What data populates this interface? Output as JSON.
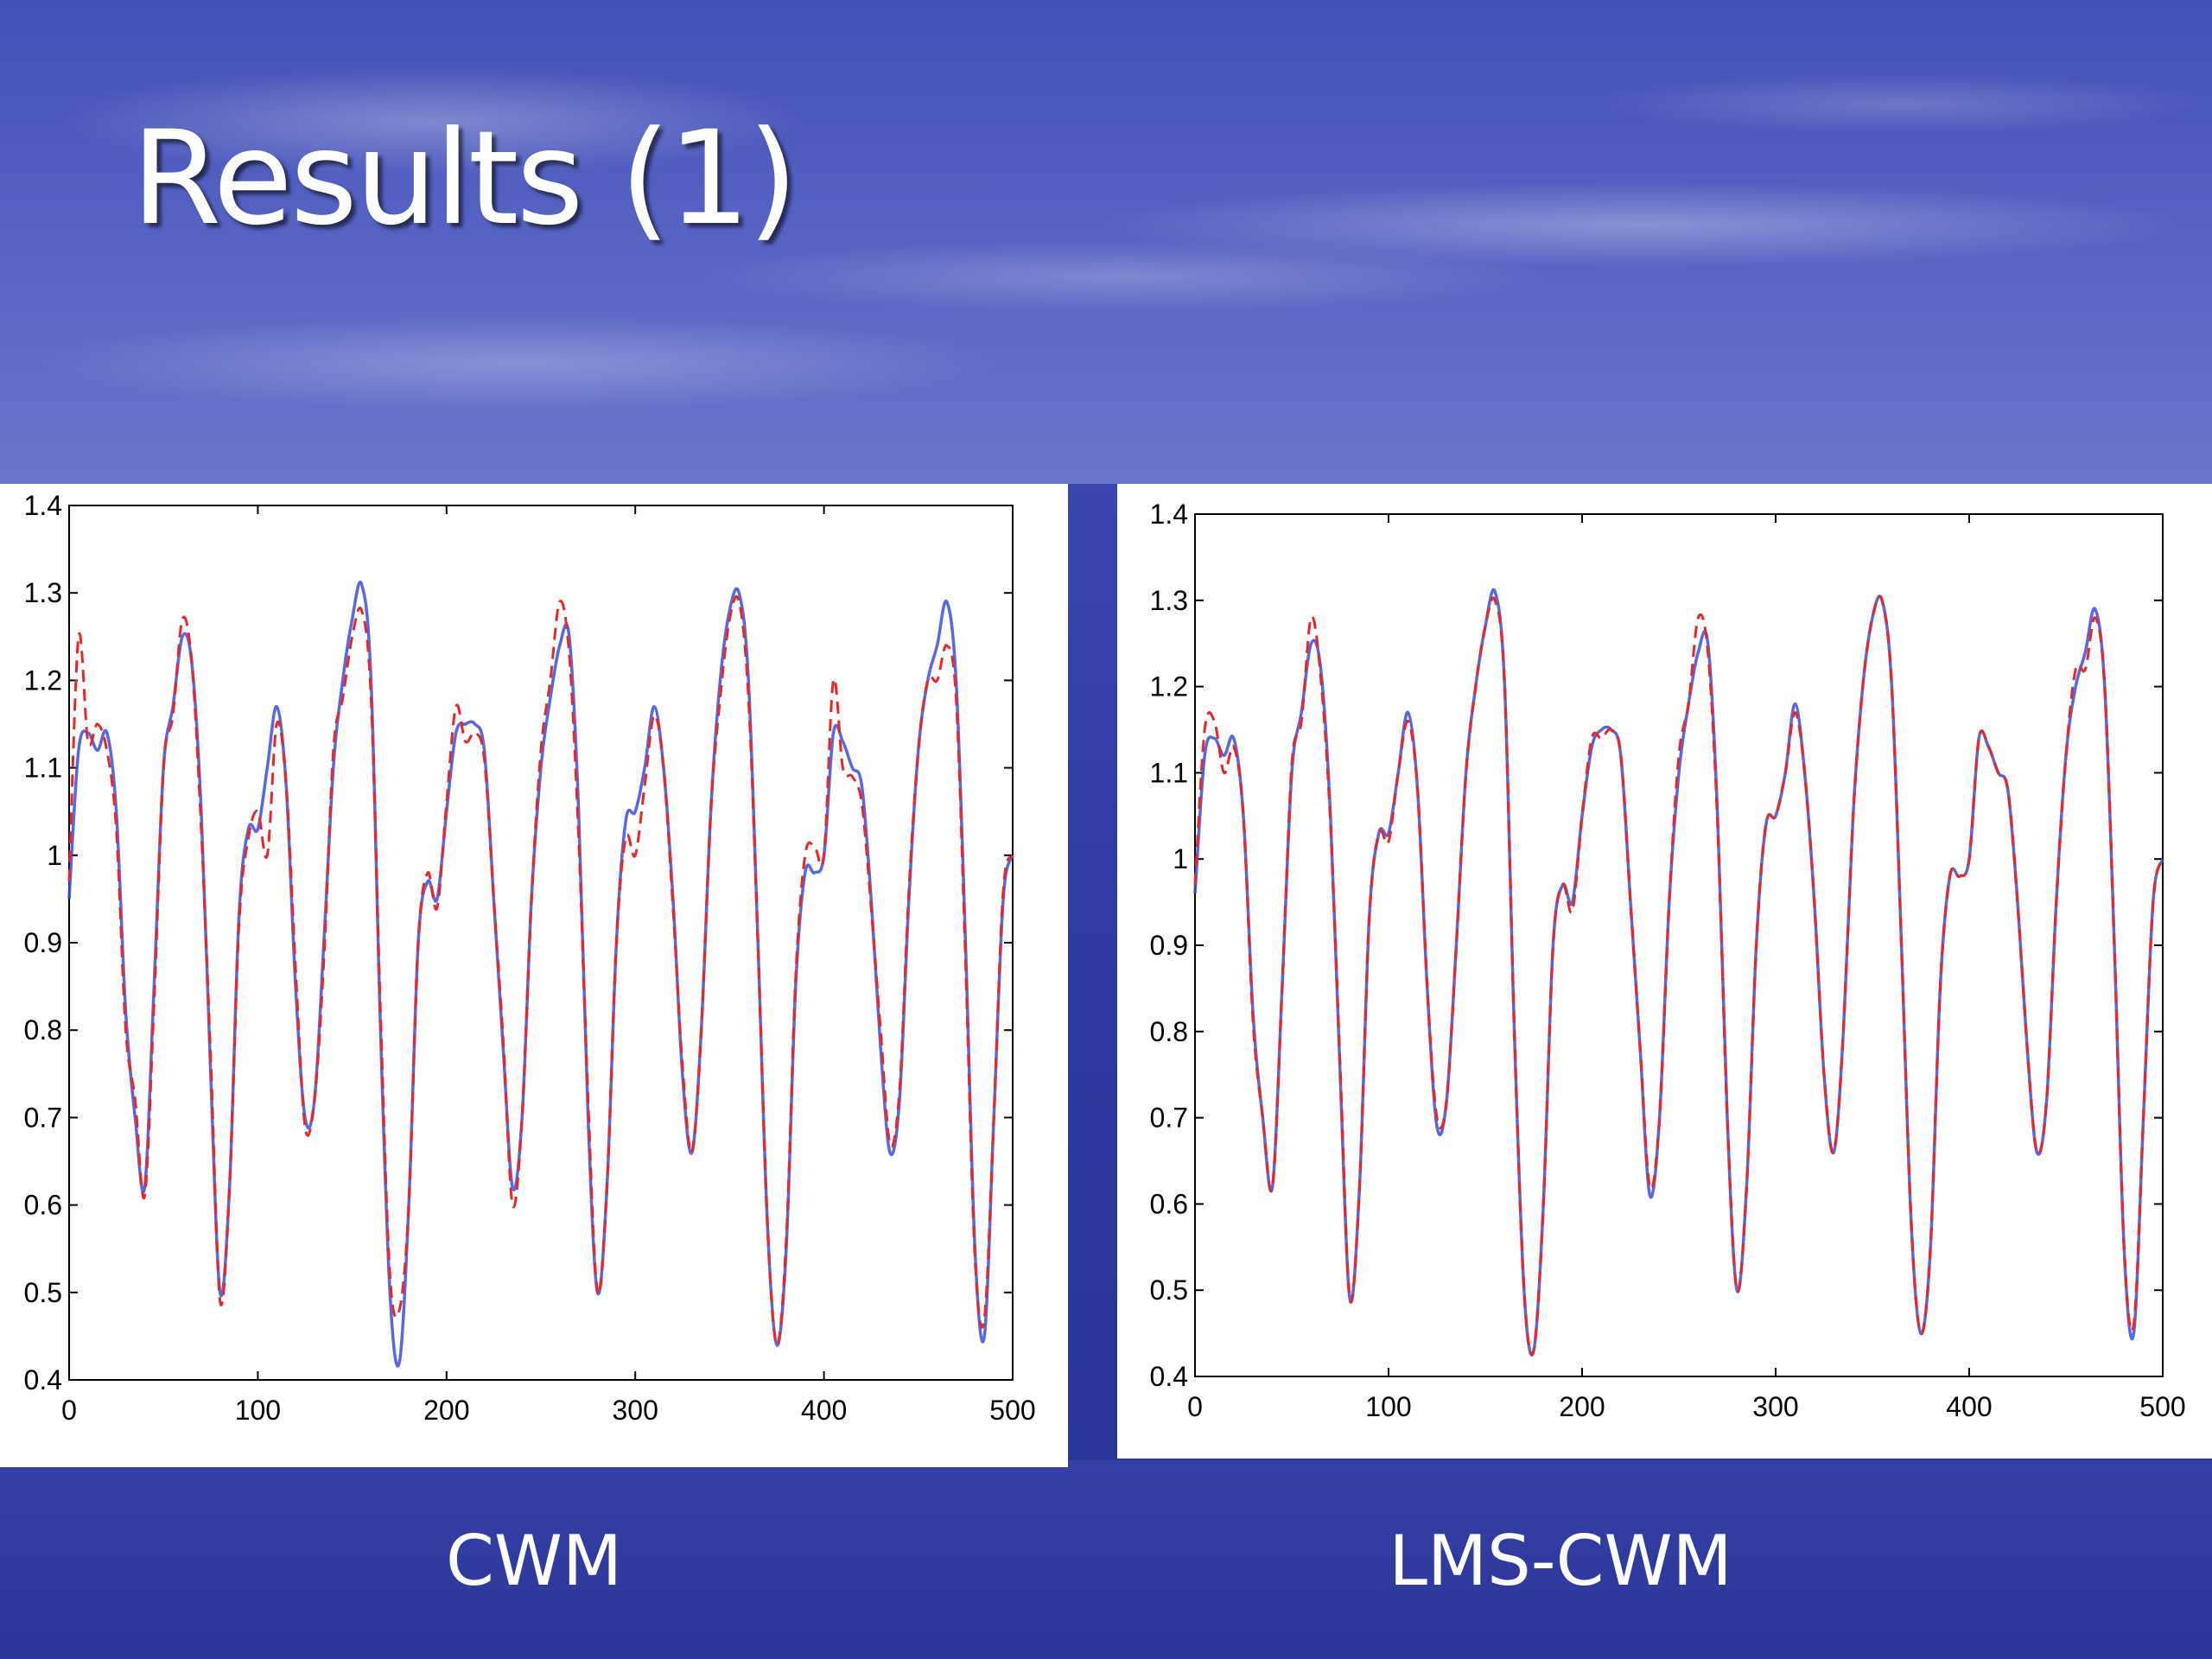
{
  "slide": {
    "title": "Results (1)"
  },
  "chart_data": [
    {
      "type": "line",
      "caption": "CWM",
      "xlim": [
        0,
        500
      ],
      "ylim": [
        0.4,
        1.4
      ],
      "xticks": [
        "0",
        "100",
        "200",
        "300",
        "400",
        "500"
      ],
      "yticks": [
        "0.4",
        "0.5",
        "0.6",
        "0.7",
        "0.8",
        "0.9",
        "1",
        "1.1",
        "1.2",
        "1.3",
        "1.4"
      ],
      "grid": false,
      "series": [
        {
          "style": "solid",
          "color": "#3a4ee0",
          "x": [
            0,
            5,
            10,
            15,
            20,
            25,
            30,
            35,
            40,
            45,
            50,
            55,
            60,
            65,
            70,
            75,
            80,
            85,
            90,
            95,
            100,
            105,
            110,
            115,
            120,
            125,
            130,
            135,
            140,
            145,
            150,
            155,
            160,
            165,
            170,
            175,
            180,
            185,
            190,
            195,
            200,
            205,
            210,
            215,
            220,
            225,
            230,
            235,
            240,
            245,
            250,
            255,
            260,
            265,
            270,
            275,
            280,
            285,
            290,
            295,
            300,
            305,
            310,
            315,
            320,
            325,
            330,
            335,
            340,
            345,
            350,
            355,
            360,
            365,
            370,
            375,
            380,
            385,
            390,
            395,
            400,
            405,
            410,
            415,
            420,
            425,
            430,
            435,
            440,
            445,
            450,
            455,
            460,
            465,
            470,
            475,
            480,
            485,
            490,
            495,
            500
          ],
          "y": [
            0.95,
            1.12,
            1.14,
            1.12,
            1.14,
            1.05,
            0.82,
            0.7,
            0.62,
            0.85,
            1.1,
            1.17,
            1.25,
            1.22,
            1.05,
            0.75,
            0.5,
            0.62,
            0.93,
            1.03,
            1.03,
            1.1,
            1.17,
            1.08,
            0.85,
            0.7,
            0.72,
            0.9,
            1.1,
            1.2,
            1.27,
            1.31,
            1.2,
            0.8,
            0.5,
            0.42,
            0.6,
            0.9,
            0.97,
            0.95,
            1.05,
            1.14,
            1.15,
            1.15,
            1.12,
            0.95,
            0.78,
            0.62,
            0.7,
            0.95,
            1.1,
            1.18,
            1.24,
            1.25,
            1.05,
            0.7,
            0.5,
            0.62,
            0.9,
            1.04,
            1.05,
            1.1,
            1.17,
            1.1,
            0.95,
            0.75,
            0.66,
            0.8,
            1.05,
            1.2,
            1.28,
            1.3,
            1.2,
            0.9,
            0.58,
            0.44,
            0.55,
            0.85,
            0.98,
            0.98,
            1.0,
            1.14,
            1.13,
            1.1,
            1.08,
            0.95,
            0.78,
            0.66,
            0.72,
            0.95,
            1.12,
            1.2,
            1.24,
            1.29,
            1.2,
            0.9,
            0.55,
            0.45,
            0.7,
            0.95,
            1.0
          ]
        },
        {
          "style": "dashed",
          "color": "#e82828",
          "x": [
            0,
            5,
            10,
            15,
            20,
            25,
            30,
            35,
            40,
            45,
            50,
            55,
            60,
            65,
            70,
            75,
            80,
            85,
            90,
            95,
            100,
            105,
            110,
            115,
            120,
            125,
            130,
            135,
            140,
            145,
            150,
            155,
            160,
            165,
            170,
            175,
            180,
            185,
            190,
            195,
            200,
            205,
            210,
            215,
            220,
            225,
            230,
            235,
            240,
            245,
            250,
            255,
            260,
            265,
            270,
            275,
            280,
            285,
            290,
            295,
            300,
            305,
            310,
            315,
            320,
            325,
            330,
            335,
            340,
            345,
            350,
            355,
            360,
            365,
            370,
            375,
            380,
            385,
            390,
            395,
            400,
            405,
            410,
            415,
            420,
            425,
            430,
            435,
            440,
            445,
            450,
            455,
            460,
            465,
            470,
            475,
            480,
            485,
            490,
            495,
            500
          ],
          "y": [
            0.97,
            1.25,
            1.13,
            1.15,
            1.12,
            1.03,
            0.8,
            0.72,
            0.61,
            0.83,
            1.1,
            1.16,
            1.27,
            1.22,
            1.03,
            0.77,
            0.49,
            0.62,
            0.92,
            1.02,
            1.05,
            1.0,
            1.15,
            1.08,
            0.87,
            0.69,
            0.72,
            0.88,
            1.12,
            1.18,
            1.25,
            1.28,
            1.18,
            0.82,
            0.52,
            0.48,
            0.6,
            0.9,
            0.98,
            0.94,
            1.06,
            1.17,
            1.13,
            1.14,
            1.11,
            0.95,
            0.79,
            0.6,
            0.7,
            0.95,
            1.12,
            1.2,
            1.29,
            1.23,
            1.02,
            0.72,
            0.5,
            0.62,
            0.9,
            1.02,
            1.0,
            1.08,
            1.16,
            1.1,
            0.94,
            0.76,
            0.66,
            0.8,
            1.05,
            1.18,
            1.27,
            1.29,
            1.18,
            0.9,
            0.58,
            0.44,
            0.56,
            0.86,
            1.0,
            1.01,
            1.0,
            1.2,
            1.1,
            1.09,
            1.06,
            0.94,
            0.8,
            0.67,
            0.73,
            0.96,
            1.12,
            1.2,
            1.2,
            1.24,
            1.18,
            0.88,
            0.54,
            0.47,
            0.7,
            0.96,
            1.0
          ]
        }
      ]
    },
    {
      "type": "line",
      "caption": "LMS-CWM",
      "xlim": [
        0,
        500
      ],
      "ylim": [
        0.4,
        1.4
      ],
      "xticks": [
        "0",
        "100",
        "200",
        "300",
        "400",
        "500"
      ],
      "yticks": [
        "0.4",
        "0.5",
        "0.6",
        "0.7",
        "0.8",
        "0.9",
        "1",
        "1.1",
        "1.2",
        "1.3",
        "1.4"
      ],
      "grid": false,
      "series": [
        {
          "style": "solid",
          "color": "#3a4ee0",
          "x": [
            0,
            5,
            10,
            15,
            20,
            25,
            30,
            35,
            40,
            45,
            50,
            55,
            60,
            65,
            70,
            75,
            80,
            85,
            90,
            95,
            100,
            105,
            110,
            115,
            120,
            125,
            130,
            135,
            140,
            145,
            150,
            155,
            160,
            165,
            170,
            175,
            180,
            185,
            190,
            195,
            200,
            205,
            210,
            215,
            220,
            225,
            230,
            235,
            240,
            245,
            250,
            255,
            260,
            265,
            270,
            275,
            280,
            285,
            290,
            295,
            300,
            305,
            310,
            315,
            320,
            325,
            330,
            335,
            340,
            345,
            350,
            355,
            360,
            365,
            370,
            375,
            380,
            385,
            390,
            395,
            400,
            405,
            410,
            415,
            420,
            425,
            430,
            435,
            440,
            445,
            450,
            455,
            460,
            465,
            470,
            475,
            480,
            485,
            490,
            495,
            500
          ],
          "y": [
            0.96,
            1.12,
            1.14,
            1.12,
            1.14,
            1.05,
            0.82,
            0.7,
            0.62,
            0.85,
            1.1,
            1.17,
            1.25,
            1.22,
            1.05,
            0.75,
            0.49,
            0.62,
            0.93,
            1.03,
            1.03,
            1.1,
            1.17,
            1.08,
            0.85,
            0.69,
            0.72,
            0.9,
            1.1,
            1.2,
            1.27,
            1.31,
            1.2,
            0.8,
            0.5,
            0.43,
            0.6,
            0.9,
            0.97,
            0.95,
            1.05,
            1.13,
            1.15,
            1.15,
            1.12,
            0.95,
            0.78,
            0.61,
            0.7,
            0.95,
            1.1,
            1.18,
            1.24,
            1.25,
            1.05,
            0.7,
            0.5,
            0.62,
            0.9,
            1.04,
            1.05,
            1.1,
            1.18,
            1.1,
            0.95,
            0.75,
            0.66,
            0.8,
            1.05,
            1.2,
            1.28,
            1.3,
            1.2,
            0.9,
            0.58,
            0.45,
            0.55,
            0.85,
            0.98,
            0.98,
            1.0,
            1.14,
            1.13,
            1.1,
            1.08,
            0.95,
            0.78,
            0.66,
            0.72,
            0.95,
            1.12,
            1.2,
            1.24,
            1.29,
            1.2,
            0.9,
            0.55,
            0.45,
            0.7,
            0.95,
            1.0
          ]
        },
        {
          "style": "dashed",
          "color": "#e82828",
          "x": [
            0,
            5,
            10,
            15,
            20,
            25,
            30,
            35,
            40,
            45,
            50,
            55,
            60,
            65,
            70,
            75,
            80,
            85,
            90,
            95,
            100,
            105,
            110,
            115,
            120,
            125,
            130,
            135,
            140,
            145,
            150,
            155,
            160,
            165,
            170,
            175,
            180,
            185,
            190,
            195,
            200,
            205,
            210,
            215,
            220,
            225,
            230,
            235,
            240,
            245,
            250,
            255,
            260,
            265,
            270,
            275,
            280,
            285,
            290,
            295,
            300,
            305,
            310,
            315,
            320,
            325,
            330,
            335,
            340,
            345,
            350,
            355,
            360,
            365,
            370,
            375,
            380,
            385,
            390,
            395,
            400,
            405,
            410,
            415,
            420,
            425,
            430,
            435,
            440,
            445,
            450,
            455,
            460,
            465,
            470,
            475,
            480,
            485,
            490,
            495,
            500
          ],
          "y": [
            0.97,
            1.15,
            1.16,
            1.1,
            1.13,
            1.05,
            0.81,
            0.7,
            0.62,
            0.85,
            1.11,
            1.16,
            1.28,
            1.21,
            1.04,
            0.76,
            0.49,
            0.62,
            0.93,
            1.03,
            1.02,
            1.1,
            1.16,
            1.08,
            0.85,
            0.7,
            0.72,
            0.9,
            1.1,
            1.2,
            1.27,
            1.3,
            1.2,
            0.8,
            0.5,
            0.43,
            0.6,
            0.9,
            0.97,
            0.94,
            1.05,
            1.14,
            1.14,
            1.15,
            1.12,
            0.95,
            0.78,
            0.62,
            0.7,
            0.95,
            1.12,
            1.18,
            1.28,
            1.24,
            1.04,
            0.7,
            0.5,
            0.62,
            0.9,
            1.04,
            1.05,
            1.1,
            1.17,
            1.1,
            0.95,
            0.75,
            0.66,
            0.8,
            1.05,
            1.2,
            1.28,
            1.3,
            1.2,
            0.9,
            0.58,
            0.45,
            0.55,
            0.85,
            0.98,
            0.98,
            1.0,
            1.14,
            1.13,
            1.1,
            1.08,
            0.95,
            0.78,
            0.66,
            0.72,
            0.95,
            1.12,
            1.22,
            1.22,
            1.28,
            1.2,
            0.9,
            0.55,
            0.46,
            0.7,
            0.95,
            1.0
          ]
        }
      ]
    }
  ]
}
